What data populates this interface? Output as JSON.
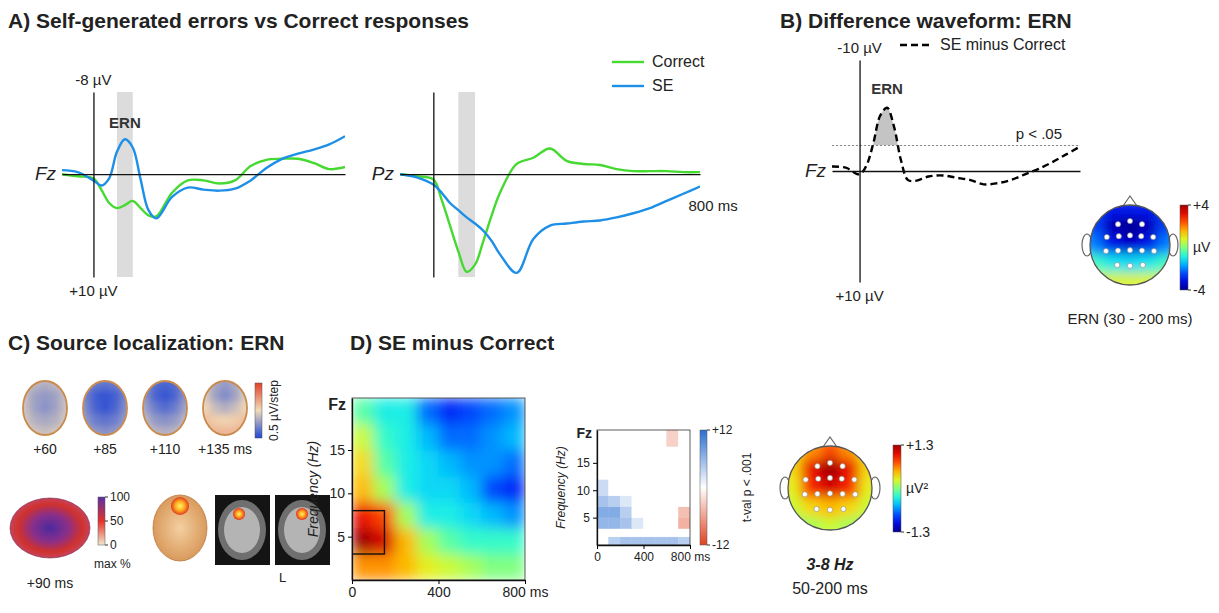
{
  "chart_data": [
    {
      "type": "line",
      "title": "A) Self-generated errors vs Correct responses",
      "label": "Fz",
      "x": [
        -100,
        -50,
        0,
        25,
        50,
        75,
        100,
        125,
        150,
        175,
        200,
        250,
        300,
        350,
        400,
        450,
        500,
        550,
        600,
        650,
        700,
        750,
        800
      ],
      "xlim": [
        -100,
        800
      ],
      "ylim": [
        -8,
        10
      ],
      "yticks": [
        {
          "value": -8,
          "label": "-8 µV"
        },
        {
          "value": 10,
          "label": "+10 µV"
        }
      ],
      "tick_labels": "y",
      "legend": "top-right",
      "shade": [
        75,
        125
      ],
      "annotation": "ERN",
      "series": [
        {
          "name": "Correct",
          "color": "#45d932",
          "values": [
            0,
            0.2,
            0.4,
            1.5,
            2.8,
            3.3,
            3.0,
            2.6,
            3.3,
            4.0,
            4.1,
            1.8,
            0.6,
            0.6,
            0.9,
            0.6,
            -0.8,
            -1.4,
            -1.5,
            -1.5,
            -1.1,
            -0.5,
            -0.7
          ]
        },
        {
          "name": "SE",
          "color": "#1e8fe6",
          "values": [
            -0.4,
            -0.2,
            0.6,
            1.1,
            0.4,
            -2.2,
            -3.4,
            -2.6,
            0.5,
            3.5,
            4.3,
            2.2,
            1.3,
            1.5,
            1.6,
            1.4,
            0.6,
            -0.6,
            -1.5,
            -2.0,
            -2.4,
            -2.9,
            -3.7
          ]
        }
      ]
    },
    {
      "type": "line",
      "label": "Pz",
      "x": [
        -100,
        -50,
        0,
        25,
        50,
        75,
        100,
        125,
        150,
        175,
        200,
        250,
        300,
        350,
        400,
        450,
        500,
        550,
        600,
        650,
        700,
        750,
        800
      ],
      "xlim": [
        -100,
        800
      ],
      "xticks": [
        {
          "value": 800,
          "label": "800 ms"
        }
      ],
      "ylim": [
        -8,
        10
      ],
      "tick_labels": "x",
      "shade": [
        75,
        125
      ],
      "series": [
        {
          "color": "#45d932",
          "values": [
            0,
            0.2,
            0.5,
            2.5,
            5,
            7.5,
            9.5,
            8.8,
            6.5,
            4,
            1.8,
            -1,
            -1.6,
            -2.5,
            -1.3,
            -1,
            -0.9,
            -0.5,
            -0.3,
            -0.3,
            -0.3,
            -0.2,
            -0.2
          ]
        },
        {
          "color": "#1e8fe6",
          "values": [
            0,
            0.3,
            1,
            1.8,
            2.8,
            3.5,
            4.2,
            4.8,
            5.5,
            6.5,
            7.8,
            9.6,
            6.3,
            5,
            4.8,
            4.6,
            4.5,
            4.2,
            3.8,
            3.3,
            2.6,
            1.9,
            1.2
          ]
        }
      ]
    },
    {
      "type": "line",
      "title": "B) Difference waveform: ERN",
      "label": "Fz",
      "x": [
        -100,
        -50,
        0,
        25,
        50,
        75,
        100,
        125,
        150,
        175,
        200,
        250,
        300,
        350,
        400,
        450,
        500,
        550,
        600,
        650,
        700,
        750,
        800
      ],
      "xlim": [
        -100,
        800
      ],
      "ylim": [
        -10,
        10
      ],
      "yticks": [
        {
          "value": -10,
          "label": "-10 µV"
        },
        {
          "value": 10,
          "label": "+10 µV"
        }
      ],
      "tick_labels": "y",
      "legend": "top-right",
      "annotation": "ERN",
      "threshold": {
        "value": -2.3,
        "label": "p < .05"
      },
      "series": [
        {
          "name": "SE minus Correct",
          "color": "#000000",
          "line_style": "dashed",
          "values": [
            -0.4,
            -0.3,
            0.3,
            -0.5,
            -2.5,
            -5,
            -5.7,
            -4,
            -1,
            0.8,
            0.9,
            0.5,
            0.4,
            0.6,
            0.8,
            1.2,
            1.1,
            0.8,
            0.3,
            -0.2,
            -0.8,
            -1.5,
            -2.2
          ]
        }
      ]
    },
    {
      "type": "topomap",
      "label": "ERN (30 - 200 ms)",
      "cells": [
        [
          -2.5,
          -3,
          -3,
          -3,
          -2.5
        ],
        [
          -2.5,
          -3.6,
          -4,
          -3.6,
          -2.5
        ],
        [
          -2,
          -3,
          -3.4,
          -3,
          -2
        ],
        [
          -0.5,
          -1,
          -1.2,
          -1,
          -0.5
        ],
        [
          0.8,
          0.8,
          0.8,
          0.8,
          0.8
        ]
      ],
      "colorbar": {
        "range": [
          -4,
          4
        ],
        "ticks": [
          {
            "value": 4,
            "label": "+4"
          },
          {
            "value": -4,
            "label": "-4"
          }
        ],
        "label": "µV"
      }
    },
    {
      "type": "topomap",
      "title": "C) Source localization: ERN",
      "label": "+60",
      "cells": [
        [
          -0.3,
          -0.5,
          -0.6,
          -0.5,
          -0.3
        ],
        [
          -0.4,
          -0.8,
          -0.9,
          -0.8,
          -0.4
        ],
        [
          -0.4,
          -0.8,
          -1.0,
          -0.8,
          -0.4
        ],
        [
          -0.3,
          -0.6,
          -0.7,
          -0.6,
          -0.3
        ],
        [
          -0.1,
          -0.3,
          -0.4,
          -0.3,
          -0.1
        ]
      ],
      "colorbar": {
        "range": [
          -2,
          2
        ],
        "label": "0.5 µV/step"
      }
    },
    {
      "type": "topomap",
      "label": "+85",
      "cells": [
        [
          -1.0,
          -1.3,
          -1.4,
          -1.3,
          -1.0
        ],
        [
          -1.2,
          -1.7,
          -1.8,
          -1.7,
          -1.2
        ],
        [
          -1.1,
          -1.6,
          -1.8,
          -1.6,
          -1.1
        ],
        [
          -0.9,
          -1.3,
          -1.4,
          -1.3,
          -0.9
        ],
        [
          -0.6,
          -0.9,
          -1.0,
          -0.9,
          -0.6
        ]
      ]
    },
    {
      "type": "topomap",
      "label": "+110",
      "cells": [
        [
          -1.1,
          -1.5,
          -1.6,
          -1.5,
          -1.1
        ],
        [
          -1.0,
          -1.6,
          -1.8,
          -1.6,
          -1.0
        ],
        [
          -0.8,
          -1.3,
          -1.5,
          -1.3,
          -0.8
        ],
        [
          -0.5,
          -0.9,
          -1.0,
          -0.9,
          -0.5
        ],
        [
          -0.2,
          -0.5,
          -0.6,
          -0.5,
          -0.2
        ]
      ]
    },
    {
      "type": "topomap",
      "label": "+135 ms",
      "cells": [
        [
          -0.3,
          -0.7,
          -0.9,
          -0.7,
          -0.3
        ],
        [
          -0.2,
          -0.8,
          -1.1,
          -0.8,
          -0.2
        ],
        [
          0.1,
          -0.4,
          -0.6,
          -0.4,
          0.1
        ],
        [
          0.4,
          0.2,
          0.1,
          0.2,
          0.4
        ],
        [
          0.6,
          0.5,
          0.5,
          0.5,
          0.6
        ]
      ]
    },
    {
      "type": "source",
      "label": "+90 ms",
      "annotation": "L",
      "colorbar": {
        "range": [
          0,
          100
        ],
        "ticks": [
          0,
          50,
          100
        ],
        "label": "max %"
      }
    },
    {
      "type": "heatmap",
      "title": "D) SE minus Correct",
      "label": "Fz",
      "ylabel": "Frequency (Hz)",
      "xlim": [
        0,
        800
      ],
      "xticks": [
        0,
        400,
        {
          "value": 800,
          "label": "800 ms"
        }
      ],
      "ylim": [
        0,
        21
      ],
      "yticks": [
        5,
        10,
        15
      ],
      "x_edges": [
        0,
        100,
        200,
        300,
        400,
        500,
        600,
        700,
        800
      ],
      "y_edges": [
        0,
        3,
        6,
        9,
        12,
        15,
        18,
        21
      ],
      "cells": [
        [
          0.6,
          0.6,
          0.5,
          0.3,
          0.2,
          0.1,
          0.0,
          0.0
        ],
        [
          1.3,
          1.1,
          0.5,
          0.1,
          -0.1,
          -0.2,
          -0.2,
          -0.2
        ],
        [
          1.0,
          0.8,
          0.1,
          -0.3,
          -0.3,
          -0.4,
          -0.5,
          -0.6
        ],
        [
          0.5,
          0.1,
          -0.3,
          -0.4,
          -0.4,
          -0.5,
          -0.8,
          -0.9
        ],
        [
          0.4,
          -0.1,
          -0.3,
          -0.4,
          -0.5,
          -0.6,
          -0.6,
          -0.7
        ],
        [
          0.2,
          -0.2,
          -0.3,
          -0.5,
          -0.7,
          -0.7,
          -0.6,
          -0.5
        ],
        [
          -0.1,
          -0.3,
          -0.3,
          -0.7,
          -0.9,
          -0.8,
          -0.7,
          -0.6
        ]
      ],
      "zlim": [
        -1.3,
        1.3
      ],
      "roi": {
        "x": [
          0,
          150
        ],
        "y": [
          3,
          8
        ]
      }
    },
    {
      "type": "heatmap",
      "label": "Fz",
      "ylabel": "Frequency (Hz)",
      "xlim": [
        0,
        800
      ],
      "xticks": [
        0,
        400,
        {
          "value": 800,
          "label": "800 ms"
        }
      ],
      "ylim": [
        0,
        21
      ],
      "yticks": [
        5,
        10,
        15
      ],
      "x_edges": [
        0,
        100,
        200,
        300,
        400,
        500,
        600,
        700,
        800
      ],
      "y_edges": [
        0,
        1.5,
        3,
        5,
        7,
        9,
        12,
        15,
        18,
        21
      ],
      "cells": [
        [
          0,
          4,
          5,
          5,
          5,
          5,
          5,
          4
        ],
        [
          0,
          0,
          0,
          0,
          0,
          0,
          0,
          0
        ],
        [
          6,
          6,
          5,
          2,
          0,
          0,
          0,
          -5
        ],
        [
          7,
          7,
          4,
          0,
          0,
          0,
          0,
          -4
        ],
        [
          5,
          4,
          2,
          0,
          0,
          0,
          0,
          0
        ],
        [
          3,
          0,
          0,
          0,
          0,
          0,
          0,
          0
        ],
        [
          0,
          0,
          0,
          0,
          0,
          0,
          0,
          0
        ],
        [
          0,
          0,
          0,
          0,
          0,
          0,
          0,
          0
        ],
        [
          0,
          0,
          0,
          0,
          0,
          0,
          -3,
          0
        ]
      ],
      "colorbar": {
        "range": [
          -12,
          12
        ],
        "ticks": [
          {
            "value": 12,
            "label": "+12"
          },
          {
            "value": -12,
            "label": "-12"
          }
        ],
        "label": "t-val p < .001"
      }
    },
    {
      "type": "topomap",
      "label": "3-8 Hz",
      "sublabel": "50-200 ms",
      "cells": [
        [
          0.3,
          0.6,
          0.8,
          0.6,
          0.3
        ],
        [
          0.4,
          1.0,
          1.3,
          1.0,
          0.4
        ],
        [
          0.3,
          0.9,
          1.1,
          0.9,
          0.3
        ],
        [
          0.2,
          0.4,
          0.5,
          0.4,
          0.2
        ],
        [
          0.0,
          0.1,
          0.2,
          0.1,
          0.0
        ]
      ],
      "colorbar": {
        "range": [
          -1.3,
          1.3
        ],
        "ticks": [
          {
            "value": 1.3,
            "label": "+1.3"
          },
          {
            "value": -1.3,
            "label": "-1.3"
          }
        ],
        "label": "µV²"
      }
    }
  ]
}
